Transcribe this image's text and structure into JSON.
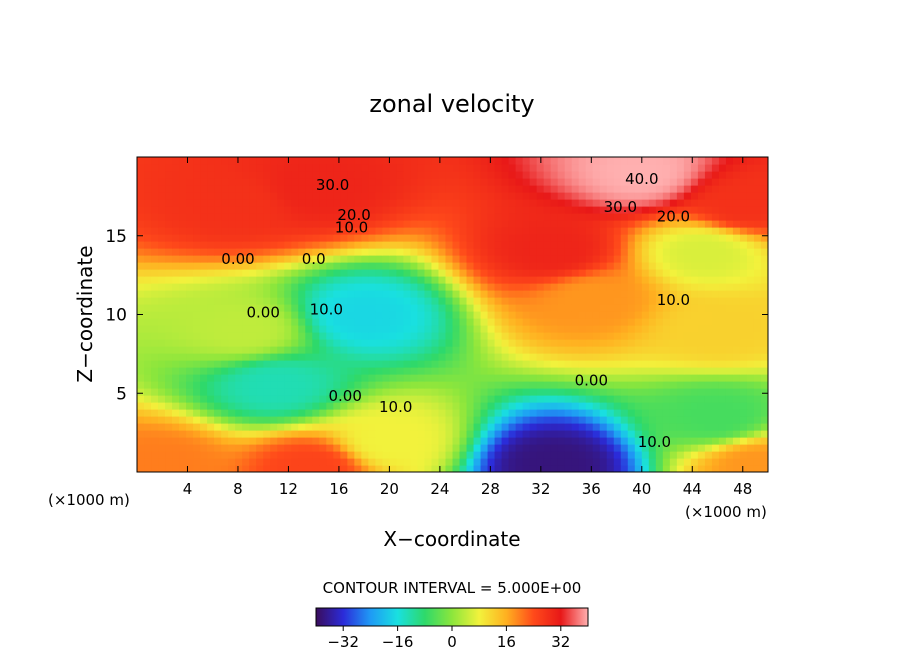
{
  "chart_data": {
    "type": "heatmap",
    "title": "zonal velocity",
    "xlabel": "X−coordinate",
    "ylabel": "Z−coordinate",
    "x_unit_left": "(×1000 m)",
    "x_unit_right": "(×1000 m)",
    "xlim": [
      0,
      50
    ],
    "ylim": [
      0,
      20
    ],
    "xticks": [
      4,
      8,
      12,
      16,
      20,
      24,
      28,
      32,
      36,
      40,
      44,
      48
    ],
    "yticks": [
      5,
      10,
      15
    ],
    "contour_interval_text": "CONTOUR INTERVAL = 5.000E+00",
    "contour_interval": 5.0,
    "colorbar": {
      "min": -40,
      "max": 40,
      "ticks": [
        -32,
        -16,
        0,
        16,
        32
      ],
      "colors": [
        "#3a0d5c",
        "#2b2bd9",
        "#1f9af5",
        "#19e0e0",
        "#2ed96a",
        "#8ce63c",
        "#f2f23c",
        "#ffb020",
        "#ff4a1a",
        "#e81818",
        "#ffb0b0"
      ]
    },
    "contour_labels": [
      {
        "text": "30.0",
        "x": 15.5,
        "z": 17.9
      },
      {
        "text": "40.0",
        "x": 40.0,
        "z": 18.3
      },
      {
        "text": "20.0",
        "x": 17.2,
        "z": 16.0
      },
      {
        "text": "30.0",
        "x": 38.3,
        "z": 16.5
      },
      {
        "text": "20.0",
        "x": 42.5,
        "z": 15.9
      },
      {
        "text": "10.0",
        "x": 17.0,
        "z": 15.2
      },
      {
        "text": "0.00",
        "x": 8.0,
        "z": 13.2
      },
      {
        "text": "0.0",
        "x": 14.0,
        "z": 13.2
      },
      {
        "text": "0.00",
        "x": 10.0,
        "z": 9.8
      },
      {
        "text": "10.0",
        "x": 15.0,
        "z": 10.0
      },
      {
        "text": "10.0",
        "x": 42.5,
        "z": 10.6
      },
      {
        "text": "0.00",
        "x": 36.0,
        "z": 5.5
      },
      {
        "text": "0.00",
        "x": 16.5,
        "z": 4.5
      },
      {
        "text": "10.0",
        "x": 20.5,
        "z": 3.8
      },
      {
        "text": "10.0",
        "x": 41.0,
        "z": 1.6
      }
    ],
    "field_features": [
      {
        "x": 40,
        "z": 19,
        "value": 40
      },
      {
        "x": 33,
        "z": 14,
        "value": 30
      },
      {
        "x": 14,
        "z": 18,
        "value": 30
      },
      {
        "x": 8,
        "z": 17,
        "value": 28
      },
      {
        "x": 48,
        "z": 17,
        "value": 28
      },
      {
        "x": 18,
        "z": 10,
        "value": -17
      },
      {
        "x": 11,
        "z": 5.5,
        "value": -13
      },
      {
        "x": 33,
        "z": 0.5,
        "value": -38
      },
      {
        "x": 36,
        "z": 11,
        "value": 18
      },
      {
        "x": 46,
        "z": 9,
        "value": 12
      },
      {
        "x": 20,
        "z": 2,
        "value": 8
      },
      {
        "x": 14,
        "z": 0.3,
        "value": 25
      },
      {
        "x": 2,
        "z": 0.5,
        "value": 20
      },
      {
        "x": 49,
        "z": 0.5,
        "value": 18
      },
      {
        "x": 46,
        "z": 3.5,
        "value": -6
      },
      {
        "x": 45,
        "z": 14,
        "value": 6
      },
      {
        "x": 8.5,
        "z": 9,
        "value": 4
      }
    ]
  }
}
